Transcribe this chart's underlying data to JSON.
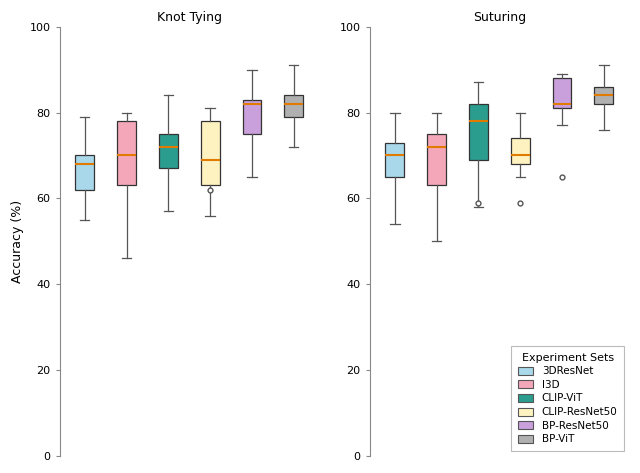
{
  "title_left": "Knot Tying",
  "title_right": "Suturing",
  "ylabel": "Accuracy (%)",
  "ylim": [
    0,
    100
  ],
  "yticks": [
    0,
    20,
    40,
    60,
    80,
    100
  ],
  "colors": {
    "3DResNet": "#a8d8ea",
    "I3D": "#f4a7b9",
    "CLIP-ViT": "#2a9d8f",
    "CLIP-ResNet50": "#fef3c0",
    "BP-ResNet50": "#c9a0dc",
    "BP-ViT": "#b0b0b0"
  },
  "median_color": "#e07b00",
  "legend_title": "Experiment Sets",
  "legend_labels": [
    "3DResNet",
    "I3D",
    "CLIP-ViT",
    "CLIP-ResNet50",
    "BP-ResNet50",
    "BP-ViT"
  ],
  "knot_tying": {
    "3DResNet": {
      "whislo": 55,
      "q1": 62,
      "med": 68,
      "q3": 70,
      "whishi": 79,
      "fliers": []
    },
    "I3D": {
      "whislo": 46,
      "q1": 63,
      "med": 70,
      "q3": 78,
      "whishi": 80,
      "fliers": []
    },
    "CLIP-ViT": {
      "whislo": 57,
      "q1": 67,
      "med": 72,
      "q3": 75,
      "whishi": 84,
      "fliers": []
    },
    "CLIP-ResNet50": {
      "whislo": 56,
      "q1": 63,
      "med": 69,
      "q3": 78,
      "whishi": 81,
      "fliers": [
        62
      ]
    },
    "BP-ResNet50": {
      "whislo": 65,
      "q1": 75,
      "med": 82,
      "q3": 83,
      "whishi": 90,
      "fliers": []
    },
    "BP-ViT": {
      "whislo": 72,
      "q1": 79,
      "med": 82,
      "q3": 84,
      "whishi": 91,
      "fliers": []
    }
  },
  "suturing": {
    "3DResNet": {
      "whislo": 54,
      "q1": 65,
      "med": 70,
      "q3": 73,
      "whishi": 80,
      "fliers": []
    },
    "I3D": {
      "whislo": 50,
      "q1": 63,
      "med": 72,
      "q3": 75,
      "whishi": 80,
      "fliers": []
    },
    "CLIP-ViT": {
      "whislo": 58,
      "q1": 69,
      "med": 78,
      "q3": 82,
      "whishi": 87,
      "fliers": [
        59
      ]
    },
    "CLIP-ResNet50": {
      "whislo": 65,
      "q1": 68,
      "med": 70,
      "q3": 74,
      "whishi": 80,
      "fliers": [
        59
      ]
    },
    "BP-ResNet50": {
      "whislo": 77,
      "q1": 81,
      "med": 82,
      "q3": 88,
      "whishi": 89,
      "fliers": [
        65
      ]
    },
    "BP-ViT": {
      "whislo": 76,
      "q1": 82,
      "med": 84,
      "q3": 86,
      "whishi": 91,
      "fliers": []
    }
  },
  "box_width": 0.45,
  "figsize": [
    6.4,
    4.73
  ],
  "dpi": 100
}
